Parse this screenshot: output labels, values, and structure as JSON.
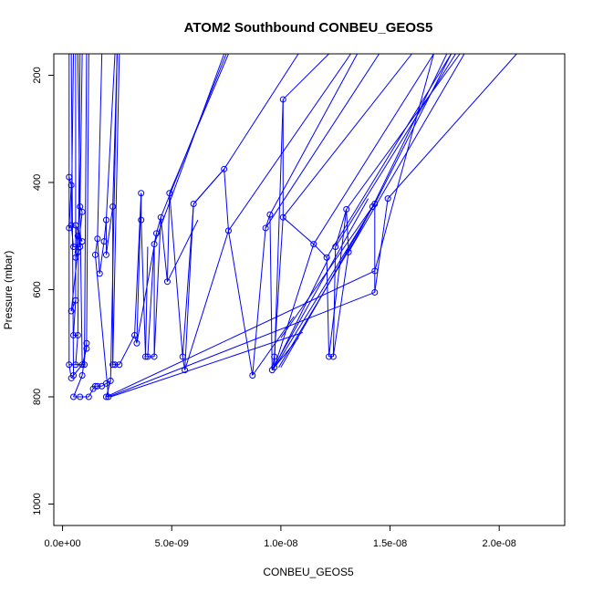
{
  "chart_data": {
    "type": "line",
    "title": "ATOM2 Southbound CONBEU_GEOS5",
    "xlabel": "CONBEU_GEOS5",
    "ylabel": "Pressure (mbar)",
    "xlim": [
      -4e-10,
      2.3e-08
    ],
    "ylim": [
      1040,
      160
    ],
    "y_reversed": true,
    "x_ticks": [
      {
        "value": 0,
        "label": "0.0e+00"
      },
      {
        "value": 5e-09,
        "label": "5.0e-09"
      },
      {
        "value": 1e-08,
        "label": "1.0e-08"
      },
      {
        "value": 1.5e-08,
        "label": "1.5e-08"
      },
      {
        "value": 2e-08,
        "label": "2.0e-08"
      }
    ],
    "y_ticks": [
      {
        "value": 200,
        "label": "200"
      },
      {
        "value": 400,
        "label": "400"
      },
      {
        "value": 600,
        "label": "600"
      },
      {
        "value": 800,
        "label": "800"
      },
      {
        "value": 1000,
        "label": "1000"
      }
    ],
    "grid": false,
    "series_color": "#0000ff",
    "marker": "open-circle",
    "points": [
      [
        3e-10,
        390
      ],
      [
        4e-10,
        405
      ],
      [
        4e-10,
        480
      ],
      [
        3e-10,
        485
      ],
      [
        5e-10,
        520
      ],
      [
        6e-10,
        480
      ],
      [
        7e-10,
        500
      ],
      [
        8e-10,
        520
      ],
      [
        9e-10,
        510
      ],
      [
        6e-10,
        540
      ],
      [
        7e-10,
        530
      ],
      [
        8e-10,
        445
      ],
      [
        9e-10,
        455
      ],
      [
        6e-10,
        620
      ],
      [
        4e-10,
        640
      ],
      [
        5e-10,
        685
      ],
      [
        7e-10,
        685
      ],
      [
        6e-10,
        740
      ],
      [
        3e-10,
        740
      ],
      [
        4e-10,
        765
      ],
      [
        5e-10,
        760
      ],
      [
        1e-09,
        740
      ],
      [
        9e-10,
        740
      ],
      [
        1.1e-09,
        700
      ],
      [
        1.1e-09,
        710
      ],
      [
        9e-10,
        760
      ],
      [
        5e-10,
        800
      ],
      [
        8e-10,
        800
      ],
      [
        1.2e-09,
        800
      ],
      [
        1.4e-09,
        785
      ],
      [
        1.5e-09,
        780
      ],
      [
        1.6e-09,
        780
      ],
      [
        1.8e-09,
        780
      ],
      [
        2e-09,
        775
      ],
      [
        2.2e-09,
        770
      ],
      [
        2e-09,
        800
      ],
      [
        2.1e-09,
        800
      ],
      [
        1.5e-09,
        535
      ],
      [
        1.6e-09,
        505
      ],
      [
        1.7e-09,
        570
      ],
      [
        1.9e-09,
        510
      ],
      [
        2e-09,
        470
      ],
      [
        2e-09,
        535
      ],
      [
        2.3e-09,
        445
      ],
      [
        2.3e-09,
        740
      ],
      [
        2.4e-09,
        740
      ],
      [
        2.6e-09,
        740
      ],
      [
        3.3e-09,
        685
      ],
      [
        3.4e-09,
        700
      ],
      [
        3.6e-09,
        420
      ],
      [
        3.6e-09,
        470
      ],
      [
        3.8e-09,
        725
      ],
      [
        3.9e-09,
        725
      ],
      [
        4.2e-09,
        725
      ],
      [
        4.2e-09,
        515
      ],
      [
        4.3e-09,
        495
      ],
      [
        4.5e-09,
        465
      ],
      [
        4.8e-09,
        585
      ],
      [
        4.9e-09,
        420
      ],
      [
        5.5e-09,
        725
      ],
      [
        5.6e-09,
        750
      ],
      [
        6e-09,
        440
      ],
      [
        7.4e-09,
        375
      ],
      [
        7.6e-09,
        490
      ],
      [
        8.7e-09,
        760
      ],
      [
        9.3e-09,
        485
      ],
      [
        9.5e-09,
        460
      ],
      [
        9.6e-09,
        750
      ],
      [
        9.7e-09,
        725
      ],
      [
        9.7e-09,
        745
      ],
      [
        1.01e-08,
        245
      ],
      [
        1.01e-08,
        465
      ],
      [
        1.15e-08,
        515
      ],
      [
        1.21e-08,
        540
      ],
      [
        1.22e-08,
        725
      ],
      [
        1.24e-08,
        725
      ],
      [
        1.25e-08,
        520
      ],
      [
        1.3e-08,
        450
      ],
      [
        1.31e-08,
        530
      ],
      [
        1.42e-08,
        445
      ],
      [
        1.43e-08,
        440
      ],
      [
        1.43e-08,
        565
      ],
      [
        1.43e-08,
        605
      ],
      [
        1.49e-08,
        430
      ]
    ],
    "path_order": [
      0,
      1,
      3,
      2,
      4,
      7,
      6,
      8,
      5,
      10,
      9,
      11,
      12,
      14,
      13,
      15,
      16,
      17,
      21,
      18,
      19,
      20,
      22,
      24,
      23,
      25,
      26,
      27,
      28,
      29,
      30,
      31,
      32,
      33,
      34,
      35,
      36,
      37,
      38,
      39,
      40,
      41,
      42,
      43,
      44,
      45,
      46,
      47,
      48,
      49,
      50,
      51,
      52,
      53,
      54,
      55,
      56,
      57,
      58,
      59,
      60,
      61,
      62,
      63,
      64,
      65,
      66,
      67,
      68,
      69,
      70,
      71,
      72,
      73,
      74,
      75,
      76,
      77,
      78,
      79,
      80,
      81,
      82,
      83
    ],
    "segments": [
      [
        [
          3e-10,
          740
        ],
        [
          3e-10,
          160
        ]
      ],
      [
        [
          5e-10,
          760
        ],
        [
          4e-10,
          160
        ]
      ],
      [
        [
          6e-10,
          620
        ],
        [
          6e-10,
          160
        ]
      ],
      [
        [
          7e-10,
          685
        ],
        [
          8e-10,
          160
        ]
      ],
      [
        [
          8e-10,
          445
        ],
        [
          9e-10,
          160
        ]
      ],
      [
        [
          1e-09,
          740
        ],
        [
          1.1e-09,
          160
        ]
      ],
      [
        [
          4e-10,
          480
        ],
        [
          5e-10,
          160
        ]
      ],
      [
        [
          9e-10,
          740
        ],
        [
          7e-10,
          160
        ]
      ],
      [
        [
          1.1e-09,
          700
        ],
        [
          1.2e-09,
          160
        ]
      ],
      [
        [
          2e-09,
          470
        ],
        [
          2.4e-09,
          160
        ]
      ],
      [
        [
          2.3e-09,
          740
        ],
        [
          2.6e-09,
          160
        ]
      ],
      [
        [
          2.2e-09,
          770
        ],
        [
          2.5e-09,
          160
        ]
      ],
      [
        [
          2.3e-09,
          445
        ],
        [
          2.5e-09,
          160
        ]
      ],
      [
        [
          1.6e-09,
          505
        ],
        [
          1.8e-09,
          160
        ]
      ],
      [
        [
          3.8e-09,
          725
        ],
        [
          3.9e-09,
          520
        ]
      ],
      [
        [
          3.9e-09,
          725
        ],
        [
          4.2e-09,
          515
        ]
      ],
      [
        [
          4.2e-09,
          725
        ],
        [
          4.5e-09,
          465
        ]
      ],
      [
        [
          3.3e-09,
          685
        ],
        [
          3.6e-09,
          420
        ]
      ],
      [
        [
          3.4e-09,
          700
        ],
        [
          4.3e-09,
          495
        ]
      ],
      [
        [
          4.2e-09,
          515
        ],
        [
          7.4e-09,
          160
        ]
      ],
      [
        [
          4.5e-09,
          465
        ],
        [
          7.5e-09,
          160
        ]
      ],
      [
        [
          4.9e-09,
          420
        ],
        [
          7.6e-09,
          160
        ]
      ],
      [
        [
          4.8e-09,
          585
        ],
        [
          6.2e-09,
          470
        ]
      ],
      [
        [
          5.5e-09,
          725
        ],
        [
          6e-09,
          440
        ]
      ],
      [
        [
          5.6e-09,
          750
        ],
        [
          7.6e-09,
          490
        ]
      ],
      [
        [
          6e-09,
          440
        ],
        [
          7.4e-09,
          375
        ]
      ],
      [
        [
          7.4e-09,
          375
        ],
        [
          1.08e-08,
          160
        ]
      ],
      [
        [
          7.6e-09,
          490
        ],
        [
          1.32e-08,
          160
        ]
      ],
      [
        [
          9.3e-09,
          485
        ],
        [
          1.45e-08,
          160
        ]
      ],
      [
        [
          9.5e-09,
          460
        ],
        [
          1.35e-08,
          160
        ]
      ],
      [
        [
          8.7e-09,
          760
        ],
        [
          1.06e-08,
          650
        ]
      ],
      [
        [
          9.6e-09,
          750
        ],
        [
          1.08e-08,
          690
        ]
      ],
      [
        [
          9.7e-09,
          725
        ],
        [
          1.01e-08,
          465
        ]
      ],
      [
        [
          9.7e-09,
          745
        ],
        [
          1.22e-08,
          540
        ]
      ],
      [
        [
          1.01e-08,
          245
        ],
        [
          1.22e-08,
          160
        ]
      ],
      [
        [
          1.01e-08,
          465
        ],
        [
          1.6e-08,
          160
        ]
      ],
      [
        [
          1.15e-08,
          515
        ],
        [
          1.7e-08,
          160
        ]
      ],
      [
        [
          1.21e-08,
          540
        ],
        [
          1.78e-08,
          160
        ]
      ],
      [
        [
          1.22e-08,
          725
        ],
        [
          1.3e-08,
          450
        ]
      ],
      [
        [
          1.24e-08,
          725
        ],
        [
          1.31e-08,
          530
        ]
      ],
      [
        [
          1.25e-08,
          520
        ],
        [
          1.8e-08,
          160
        ]
      ],
      [
        [
          1.3e-08,
          450
        ],
        [
          1.82e-08,
          160
        ]
      ],
      [
        [
          1.31e-08,
          530
        ],
        [
          1.84e-08,
          160
        ]
      ],
      [
        [
          1.42e-08,
          445
        ],
        [
          1.76e-08,
          160
        ]
      ],
      [
        [
          1.43e-08,
          440
        ],
        [
          1.78e-08,
          160
        ]
      ],
      [
        [
          1.43e-08,
          565
        ],
        [
          1.7e-08,
          160
        ]
      ],
      [
        [
          1.49e-08,
          430
        ],
        [
          2.08e-08,
          160
        ]
      ],
      [
        [
          1e-08,
          690
        ],
        [
          1.42e-08,
          445
        ]
      ],
      [
        [
          9.8e-09,
          740
        ],
        [
          1.43e-08,
          440
        ]
      ],
      [
        [
          9.9e-09,
          745
        ],
        [
          1.35e-08,
          500
        ]
      ],
      [
        [
          2e-09,
          800
        ],
        [
          1.43e-08,
          565
        ]
      ],
      [
        [
          2.1e-09,
          800
        ],
        [
          1.43e-08,
          605
        ]
      ],
      [
        [
          2.2e-09,
          800
        ],
        [
          1.1e-08,
          680
        ]
      ],
      [
        [
          9.6e-09,
          750
        ],
        [
          1.4e-08,
          430
        ]
      ],
      [
        [
          1e-08,
          745
        ],
        [
          1.42e-08,
          445
        ]
      ],
      [
        [
          9.7e-09,
          745
        ],
        [
          1.15e-08,
          515
        ]
      ]
    ]
  }
}
